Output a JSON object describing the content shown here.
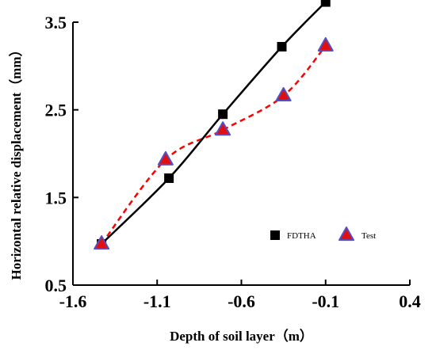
{
  "chart_data": {
    "type": "line",
    "title": "",
    "xlabel": "Depth of soil layer（m）",
    "ylabel": "Horizontal relative displacement（mm）",
    "xlim": [
      -1.6,
      0.4
    ],
    "ylim": [
      0.5,
      3.5
    ],
    "xticks": [
      -1.6,
      -1.1,
      -0.6,
      -0.1,
      0.4
    ],
    "xtick_labels": [
      "-1.6",
      "-1.1",
      "-0.6",
      "-0.1",
      "0.4"
    ],
    "yticks": [
      0.5,
      1.5,
      2.5,
      3.5
    ],
    "ytick_labels": [
      "0.5",
      "1.5",
      "2.5",
      "3.5"
    ],
    "legend_position": "lower-right",
    "grid": false,
    "series": [
      {
        "name": "FDTHA",
        "marker": "square",
        "line_style": "solid",
        "color": "#000000",
        "marker_color": "#000000",
        "x": [
          -1.43,
          -1.03,
          -0.71,
          -0.36,
          -0.1
        ],
        "y": [
          0.97,
          1.72,
          2.45,
          3.22,
          3.73
        ]
      },
      {
        "name": "Test",
        "marker": "triangle",
        "line_style": "dashed",
        "color": "#ff0000",
        "marker_color": "#e01010",
        "marker_edge_color": "#5050c8",
        "x": [
          -1.43,
          -1.05,
          -0.71,
          -0.35,
          -0.1
        ],
        "y": [
          0.97,
          1.93,
          2.27,
          2.66,
          3.23
        ]
      }
    ]
  }
}
